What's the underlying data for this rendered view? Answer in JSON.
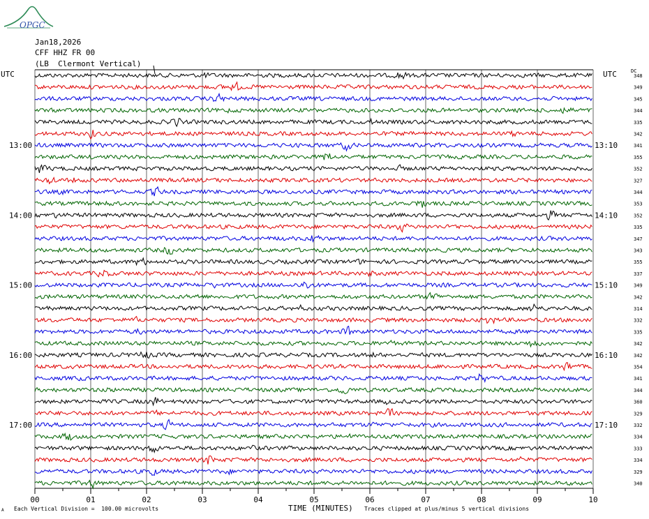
{
  "header": {
    "date": "Jan18,2026",
    "station": "CFF HHZ FR 00",
    "location": "(LB  Clermont Vertical)",
    "logo_text": "OPGC",
    "utc_left": "UTC",
    "utc_right": "UTC",
    "dc_label": "DC"
  },
  "footer": {
    "division_note": "Each Vertical Division =  100.00 microvolts",
    "xlabel": "TIME (MINUTES)",
    "clip_note": "Traces clipped at plus/minus 5 vertical divisions",
    "corner_mark": "A"
  },
  "chart_data": {
    "type": "line",
    "title": "",
    "xlabel": "TIME (MINUTES)",
    "ylabel": "",
    "x_ticks": [
      "00",
      "01",
      "02",
      "03",
      "04",
      "05",
      "06",
      "07",
      "08",
      "09",
      "10"
    ],
    "xlim": [
      0,
      10
    ],
    "trace_count": 36,
    "trace_colors": [
      "#000000",
      "#e00000",
      "#0000e0",
      "#006400"
    ],
    "left_time_labels": [
      {
        "trace": 6,
        "label": "13:00"
      },
      {
        "trace": 12,
        "label": "14:00"
      },
      {
        "trace": 18,
        "label": "15:00"
      },
      {
        "trace": 24,
        "label": "16:00"
      },
      {
        "trace": 30,
        "label": "17:00"
      }
    ],
    "right_time_labels": [
      {
        "trace": 6,
        "label": "13:10"
      },
      {
        "trace": 12,
        "label": "14:10"
      },
      {
        "trace": 18,
        "label": "15:10"
      },
      {
        "trace": 24,
        "label": "16:10"
      },
      {
        "trace": 30,
        "label": "17:10"
      }
    ],
    "dc_values": [
      "348",
      "349",
      "345",
      "344",
      "335",
      "342",
      "341",
      "355",
      "352",
      "327",
      "344",
      "353",
      "352",
      "335",
      "347",
      "343",
      "355",
      "337",
      "349",
      "342",
      "314",
      "332",
      "335",
      "342",
      "342",
      "354",
      "341",
      "344",
      "360",
      "329",
      "332",
      "334",
      "333",
      "334",
      "329",
      "340"
    ],
    "grid": true
  }
}
